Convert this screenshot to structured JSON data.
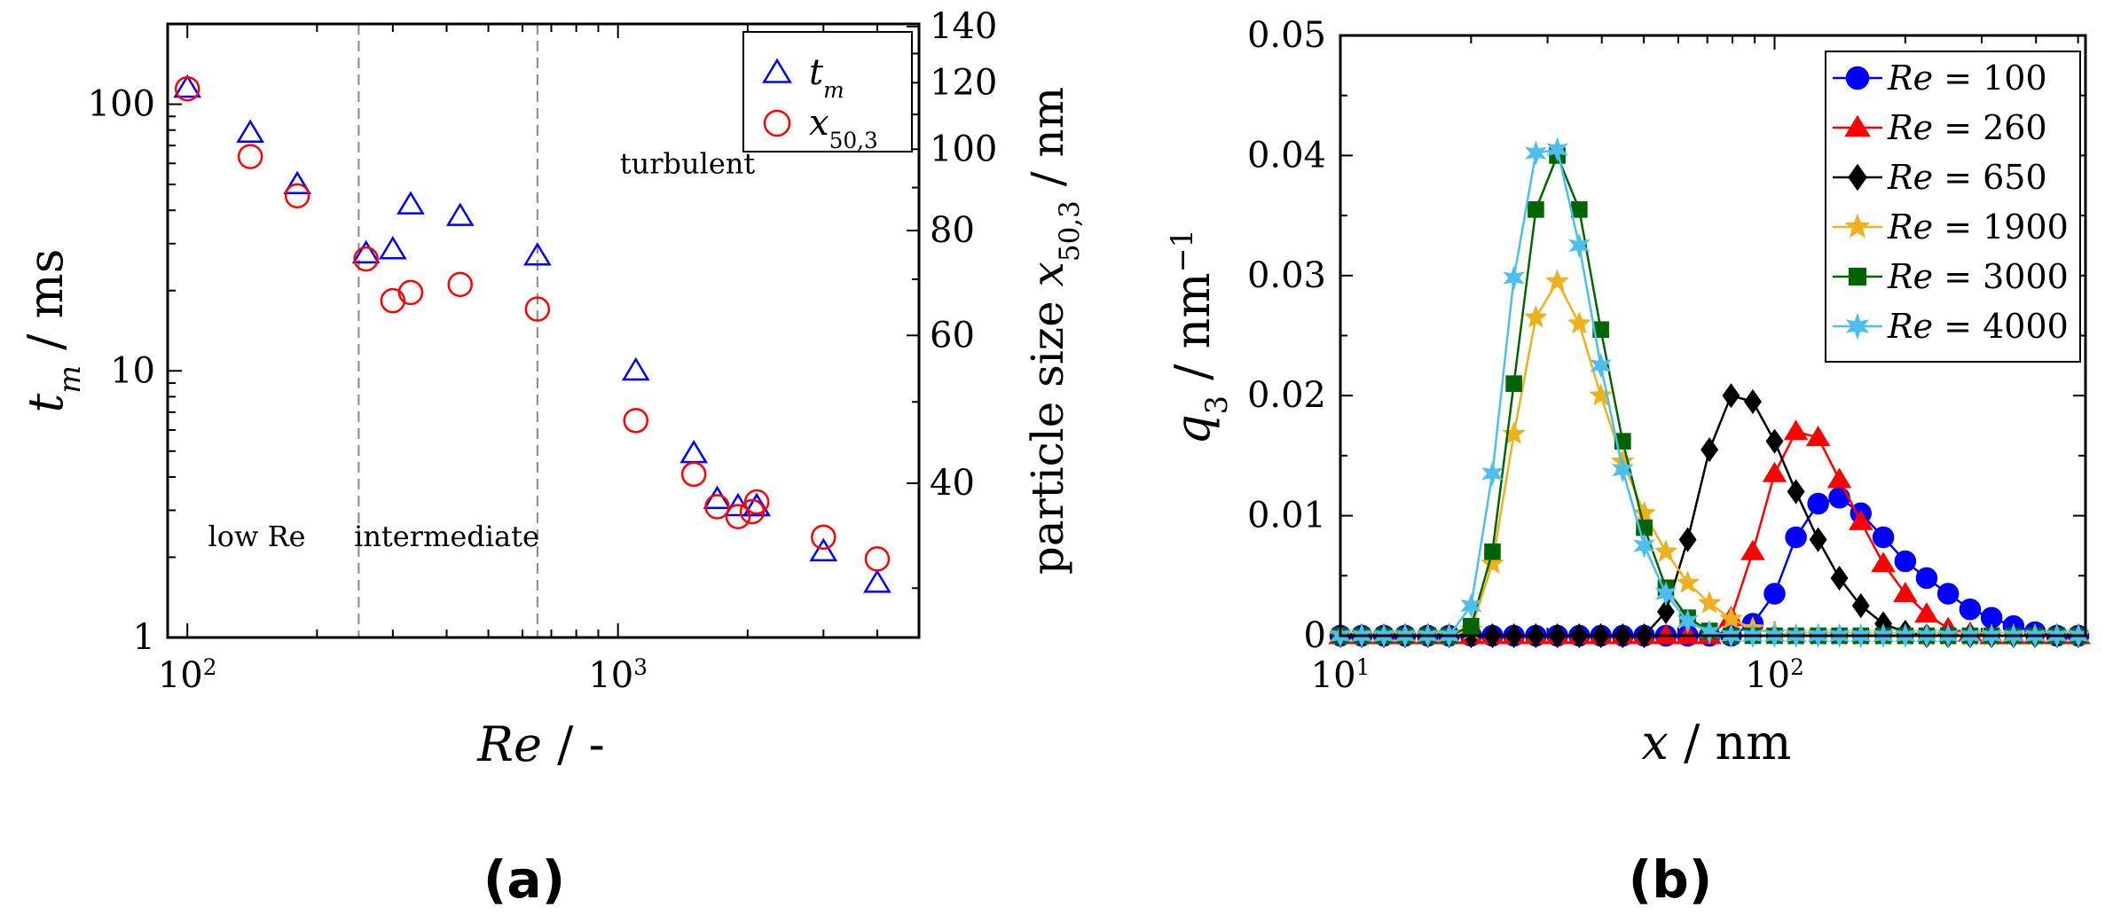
{
  "chart_data": [
    {
      "id": "a",
      "type": "scatter",
      "panel_label": "(a)",
      "xscale": "log",
      "yscale": "log",
      "xlim": [
        90,
        5000
      ],
      "ylim": [
        1,
        200
      ],
      "xlabel": "Re / -",
      "ylabel": "t_m / ms",
      "xticks": [
        {
          "value": 100,
          "base": "10",
          "exp": "2"
        },
        {
          "value": 1000,
          "base": "10",
          "exp": "3"
        }
      ],
      "yticks": [
        {
          "value": 1,
          "label": "1"
        },
        {
          "value": 10,
          "label": "10"
        },
        {
          "value": 100,
          "label": "100"
        }
      ],
      "y2label": "particle size x50,3 / nm",
      "y2scale": "log",
      "y2lim": [
        26.2,
        141
      ],
      "y2ticks": [
        {
          "value": 40,
          "label": "40"
        },
        {
          "value": 60,
          "label": "60"
        },
        {
          "value": 80,
          "label": "80"
        },
        {
          "value": 100,
          "label": "100"
        },
        {
          "value": 120,
          "label": "120"
        },
        {
          "value": 140,
          "label": "140"
        }
      ],
      "legend_position": "top-right",
      "series": [
        {
          "name": "t_m",
          "axis": "left",
          "marker": "triangle",
          "color": "#0000ff",
          "x": [
            100,
            140,
            180,
            260,
            300,
            330,
            430,
            650,
            1100,
            1500,
            1700,
            1900,
            2100,
            2100,
            3000,
            4000
          ],
          "y": [
            115,
            78,
            50,
            27.5,
            28.5,
            42,
            38,
            27,
            10,
            4.9,
            3.3,
            3.1,
            3.1,
            3.1,
            2.1,
            1.6
          ]
        },
        {
          "name": "x50,3",
          "axis": "right",
          "marker": "circle",
          "color": "#ff0000",
          "x": [
            100,
            140,
            180,
            260,
            300,
            330,
            430,
            650,
            1100,
            1500,
            1700,
            1900,
            2050,
            2100,
            3000,
            4000
          ],
          "y": [
            118,
            98,
            88,
            74,
            66,
            67.5,
            69,
            64.5,
            47.5,
            41,
            37.5,
            36.5,
            37,
            38,
            34.5,
            32.5
          ]
        }
      ],
      "regions": [
        {
          "label": "low Re",
          "label_x": 145,
          "label_y": 2.2
        },
        {
          "label": "intermediate",
          "label_x": 400,
          "label_y": 2.2
        },
        {
          "label": "turbulent",
          "label_x": 1450,
          "label_y": 55
        }
      ],
      "vlines": [
        250,
        650
      ]
    },
    {
      "id": "b",
      "type": "line",
      "panel_label": "(b)",
      "xscale": "log",
      "xlim": [
        10,
        520
      ],
      "ylim": [
        0,
        0.05
      ],
      "xlabel": "x / nm",
      "ylabel": "q3 / nm^-1",
      "xticks": [
        {
          "value": 10,
          "base": "10",
          "exp": "1"
        },
        {
          "value": 100,
          "base": "10",
          "exp": "2"
        }
      ],
      "yticks": [
        {
          "value": 0,
          "label": "0"
        },
        {
          "value": 0.01,
          "label": "0.01"
        },
        {
          "value": 0.02,
          "label": "0.02"
        },
        {
          "value": 0.03,
          "label": "0.03"
        },
        {
          "value": 0.04,
          "label": "0.04"
        },
        {
          "value": 0.05,
          "label": "0.05"
        }
      ],
      "legend_position": "top-right",
      "x": [
        10,
        11.2,
        12.6,
        14.1,
        15.9,
        17.8,
        20,
        22.4,
        25.1,
        28.2,
        31.6,
        35.5,
        39.8,
        44.7,
        50.1,
        56.2,
        63.1,
        70.8,
        79.4,
        89.1,
        100,
        112,
        126,
        141,
        158,
        178,
        200,
        224,
        251,
        282,
        316,
        355,
        398,
        447,
        501
      ],
      "series": [
        {
          "name": "Re = 100",
          "color": "#0000ff",
          "marker": "circle",
          "values": [
            0,
            0,
            0,
            0,
            0,
            0,
            0,
            0,
            0,
            0,
            0,
            0,
            0,
            0,
            0,
            0,
            0,
            0,
            0,
            0.001,
            0.0035,
            0.0082,
            0.011,
            0.0115,
            0.0102,
            0.0082,
            0.0062,
            0.0048,
            0.0035,
            0.0022,
            0.0015,
            0.0008,
            0.0003,
            0,
            0
          ]
        },
        {
          "name": "Re = 260",
          "color": "#ff0000",
          "marker": "triangle",
          "values": [
            0,
            0,
            0,
            0,
            0,
            0,
            0,
            0,
            0,
            0,
            0,
            0,
            0,
            0,
            0,
            0,
            0,
            0,
            0.0015,
            0.007,
            0.0135,
            0.017,
            0.0165,
            0.013,
            0.0095,
            0.006,
            0.0035,
            0.0018,
            0.0006,
            0.0002,
            0,
            0,
            0,
            0,
            0
          ]
        },
        {
          "name": "Re = 650",
          "color": "#000000",
          "marker": "diamond",
          "values": [
            0,
            0,
            0,
            0,
            0,
            0,
            0,
            0,
            0,
            0,
            0,
            0,
            0,
            0,
            0,
            0.002,
            0.008,
            0.0155,
            0.02,
            0.0195,
            0.0162,
            0.012,
            0.008,
            0.0048,
            0.0025,
            0.001,
            0.0003,
            0,
            0,
            0,
            0,
            0,
            0,
            0,
            0
          ]
        },
        {
          "name": "Re = 1900",
          "color": "#edb120",
          "marker": "star",
          "values": [
            0,
            0,
            0,
            0,
            0,
            0,
            0.0005,
            0.006,
            0.0168,
            0.0265,
            0.0295,
            0.026,
            0.02,
            0.0145,
            0.0102,
            0.007,
            0.0044,
            0.0027,
            0.0014,
            0.0006,
            0.0002,
            0,
            0,
            0,
            0,
            0,
            0,
            0,
            0,
            0,
            0,
            0,
            0,
            0,
            0
          ]
        },
        {
          "name": "Re = 3000",
          "color": "#006400",
          "marker": "square",
          "values": [
            0,
            0,
            0,
            0,
            0,
            0,
            0.0008,
            0.007,
            0.021,
            0.0355,
            0.04,
            0.0355,
            0.0255,
            0.0162,
            0.009,
            0.004,
            0.0015,
            0.0004,
            0,
            0,
            0,
            0,
            0,
            0,
            0,
            0,
            0,
            0,
            0,
            0,
            0,
            0,
            0,
            0,
            0
          ]
        },
        {
          "name": "Re = 4000",
          "color": "#4dbeee",
          "marker": "star6",
          "values": [
            0,
            0,
            0,
            0,
            0,
            0,
            0.0025,
            0.0135,
            0.0298,
            0.0402,
            0.0405,
            0.0325,
            0.0225,
            0.0138,
            0.0075,
            0.0035,
            0.0012,
            0.0003,
            0,
            0,
            0,
            0,
            0,
            0,
            0,
            0,
            0,
            0,
            0,
            0,
            0,
            0,
            0,
            0,
            0
          ]
        }
      ]
    }
  ]
}
